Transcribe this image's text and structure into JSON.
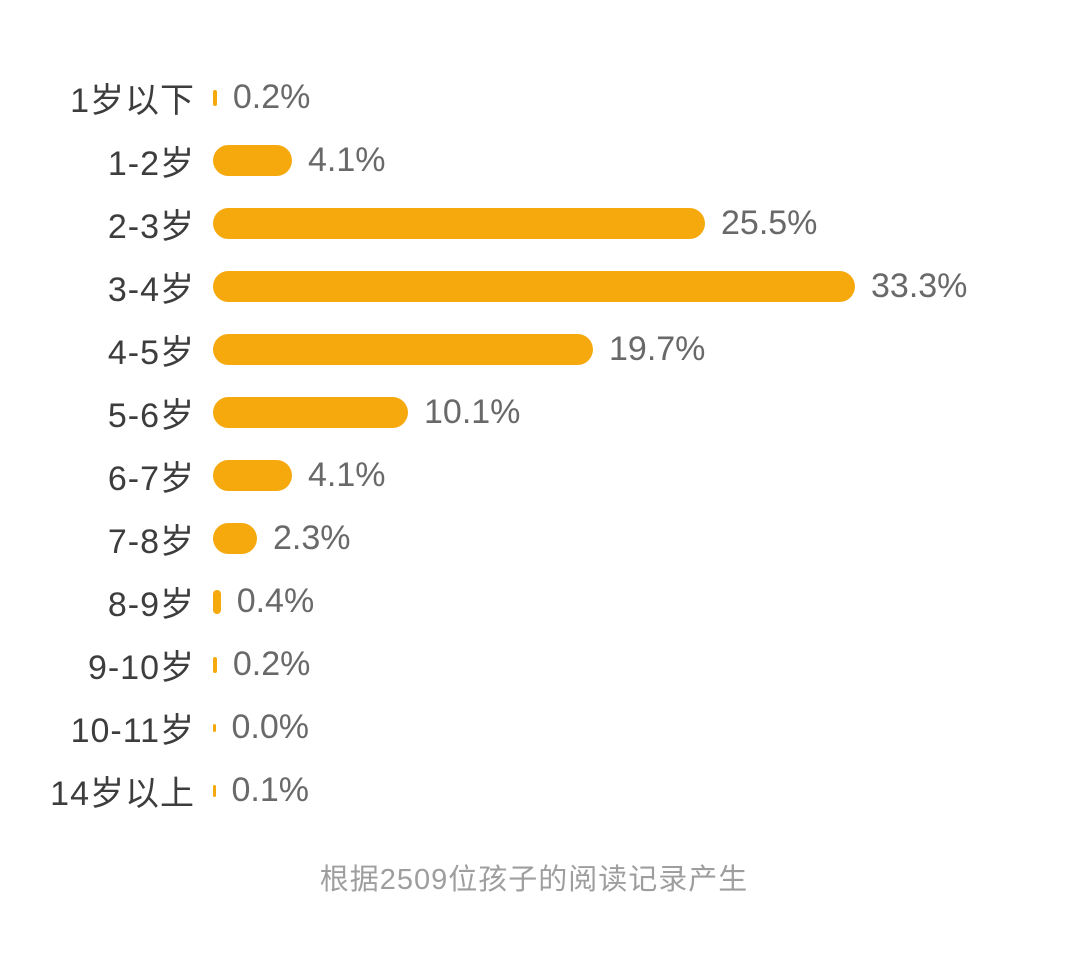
{
  "chart_data": {
    "type": "bar",
    "orientation": "horizontal",
    "title": "",
    "categories": [
      "1岁以下",
      "1-2岁",
      "2-3岁",
      "3-4岁",
      "4-5岁",
      "5-6岁",
      "6-7岁",
      "7-8岁",
      "8-9岁",
      "9-10岁",
      "10-11岁",
      "14岁以上"
    ],
    "values": [
      0.2,
      4.1,
      25.5,
      33.3,
      19.7,
      10.1,
      4.1,
      2.3,
      0.4,
      0.2,
      0.0,
      0.1
    ],
    "value_labels": [
      "0.2%",
      "4.1%",
      "25.5%",
      "33.3%",
      "19.7%",
      "10.1%",
      "4.1%",
      "2.3%",
      "0.4%",
      "0.2%",
      "0.0%",
      "0.1%"
    ],
    "xlim": [
      0,
      33.3
    ],
    "grid": false,
    "legend": false,
    "bar_color": "#F6A90D",
    "footer": "根据2509位孩子的阅读记录产生"
  },
  "colors": {
    "bar": "#F6A90D",
    "category_label": "#3D3D3D",
    "value_label": "#696969",
    "footer_text": "#9E9E9E",
    "background": "#FFFFFF"
  }
}
